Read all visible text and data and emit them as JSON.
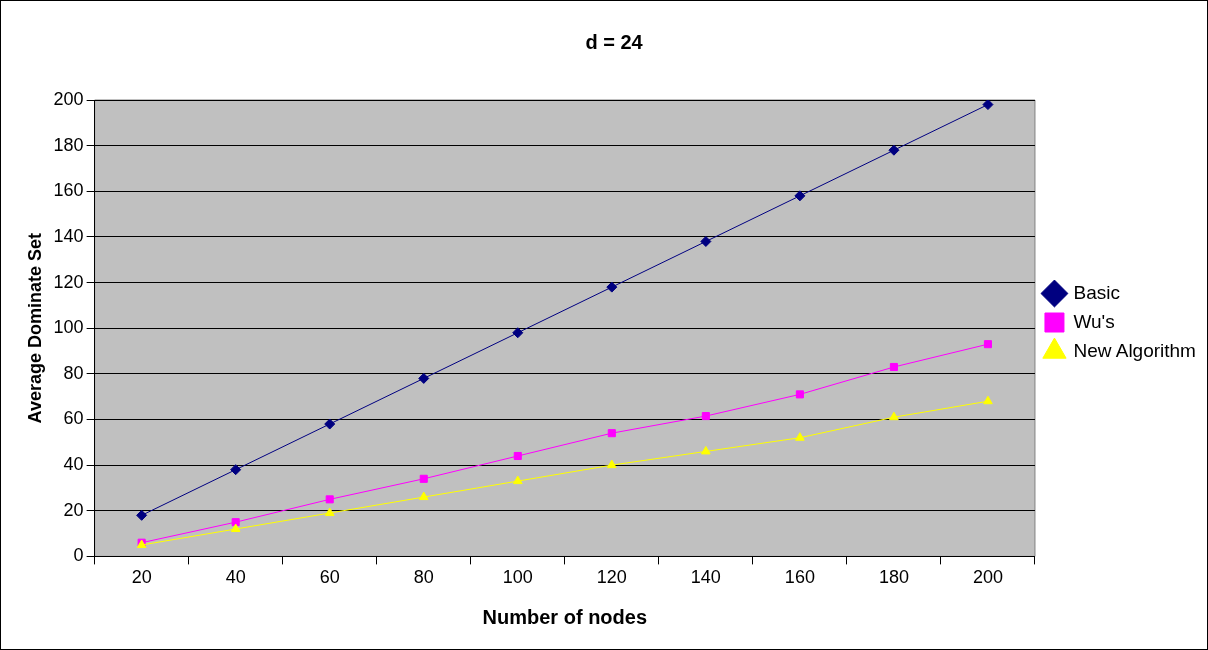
{
  "chart_data": {
    "type": "line",
    "title": "d = 24",
    "xlabel": "Number of nodes",
    "ylabel": "Average Dominate Set",
    "categories": [
      "20",
      "40",
      "60",
      "80",
      "100",
      "120",
      "140",
      "160",
      "180",
      "200"
    ],
    "series": [
      {
        "name": "Basic",
        "color": "#000080",
        "marker": "diamond",
        "values": [
          18,
          38,
          58,
          78,
          98,
          118,
          138,
          158,
          178,
          198
        ]
      },
      {
        "name": "Wu's",
        "color": "#ff00ff",
        "marker": "square",
        "values": [
          6,
          15,
          25,
          34,
          44,
          54,
          61.5,
          71,
          83,
          93
        ]
      },
      {
        "name": "New Algorithm",
        "color": "#ffff00",
        "marker": "triangle",
        "values": [
          5,
          12,
          19,
          26,
          33,
          40,
          46,
          52,
          61,
          68
        ]
      }
    ],
    "ylim": [
      0,
      200
    ],
    "yticks": [
      0,
      20,
      40,
      60,
      80,
      100,
      120,
      140,
      160,
      180,
      200
    ],
    "grid": "y",
    "legend": "right",
    "line_style": "solid"
  }
}
